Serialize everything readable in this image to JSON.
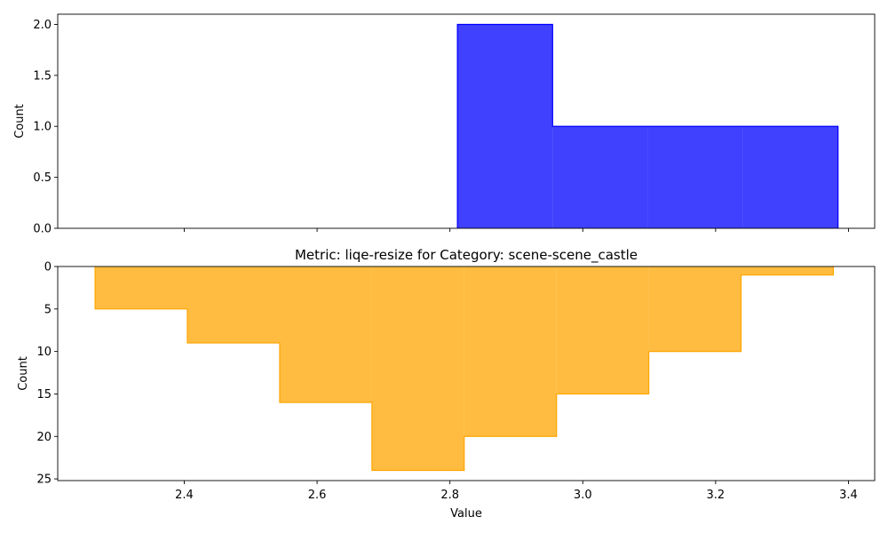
{
  "chart_data": [
    {
      "type": "bar",
      "title": "",
      "xlabel": "",
      "ylabel": "Count",
      "color": "#0000ff",
      "fill_opacity": 0.75,
      "xlim": [
        2.2095,
        3.4395
      ],
      "ylim": [
        0,
        2.1
      ],
      "y_inverted": false,
      "x_tick_labels_visible": false,
      "xticks": [
        2.4,
        2.6,
        2.8,
        3.0,
        3.2,
        3.4
      ],
      "yticks": [
        {
          "value": 0.0,
          "label": "0.0"
        },
        {
          "value": 0.5,
          "label": "0.5"
        },
        {
          "value": 1.0,
          "label": "1.0"
        },
        {
          "value": 1.5,
          "label": "1.5"
        },
        {
          "value": 2.0,
          "label": "2.0"
        }
      ],
      "bin_edges": [
        2.8113,
        2.9546,
        3.0978,
        3.2411,
        3.3843
      ],
      "values": [
        2,
        1,
        1,
        1
      ],
      "grid": false
    },
    {
      "type": "bar",
      "title": "Metric: liqe-resize for Category: scene-scene_castle",
      "xlabel": "Value",
      "ylabel": "Count",
      "color": "#ffa500",
      "fill_opacity": 0.75,
      "xlim": [
        2.2095,
        3.4395
      ],
      "ylim": [
        0,
        25.2
      ],
      "y_inverted": true,
      "x_tick_labels_visible": true,
      "xticks": [
        {
          "value": 2.4,
          "label": "2.4"
        },
        {
          "value": 2.6,
          "label": "2.6"
        },
        {
          "value": 2.8,
          "label": "2.8"
        },
        {
          "value": 3.0,
          "label": "3.0"
        },
        {
          "value": 3.2,
          "label": "3.2"
        },
        {
          "value": 3.4,
          "label": "3.4"
        }
      ],
      "yticks": [
        {
          "value": 0,
          "label": "0"
        },
        {
          "value": 5,
          "label": "5"
        },
        {
          "value": 10,
          "label": "10"
        },
        {
          "value": 15,
          "label": "15"
        },
        {
          "value": 20,
          "label": "20"
        },
        {
          "value": 25,
          "label": "25"
        }
      ],
      "bin_edges": [
        2.2658,
        2.4047,
        2.5437,
        2.6826,
        2.8215,
        2.9605,
        3.0994,
        3.2383,
        3.3773
      ],
      "values": [
        5,
        9,
        16,
        24,
        20,
        15,
        10,
        1
      ],
      "grid": false
    }
  ]
}
